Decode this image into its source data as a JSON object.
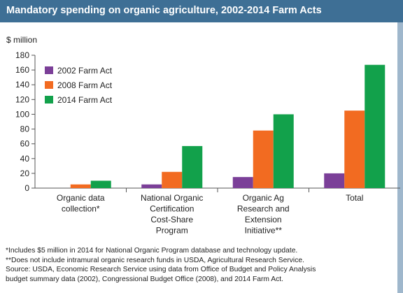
{
  "header": {
    "title": "Mandatory spending on organic agriculture, 2002-2014 Farm Acts"
  },
  "chart_data": {
    "type": "bar",
    "title": "Mandatory spending on organic agriculture, 2002-2014 Farm Acts",
    "ylabel": "$ million",
    "xlabel": "",
    "ylim": [
      0,
      180
    ],
    "yticks": [
      0,
      20,
      40,
      60,
      80,
      100,
      120,
      140,
      160,
      180
    ],
    "grid": false,
    "legend_position": "top-left",
    "categories": [
      [
        "Organic data",
        "collection*"
      ],
      [
        "National Organic",
        "Certification",
        "Cost-Share",
        "Program"
      ],
      [
        "Organic Ag",
        "Research and",
        "Extension",
        "Initiative**"
      ],
      [
        "Total"
      ]
    ],
    "series": [
      {
        "name": "2002 Farm Act",
        "color": "#7b3f98",
        "values": [
          0,
          5,
          15,
          20
        ]
      },
      {
        "name": "2008 Farm Act",
        "color": "#f26b21",
        "values": [
          5,
          22,
          78,
          105
        ]
      },
      {
        "name": "2014 Farm Act",
        "color": "#12a14b",
        "values": [
          10,
          57,
          100,
          167
        ]
      }
    ]
  },
  "notes": [
    "*Includes $5 million in 2014 for National Organic Program database and technology update.",
    "**Does not include intramural organic research funds in USDA, Agricultural Research Service.",
    "Source: USDA, Economic Research Service using data from Office of Budget and Policy Analysis",
    "budget summary data (2002), Congressional Budget Office (2008), and 2014 Farm Act."
  ]
}
